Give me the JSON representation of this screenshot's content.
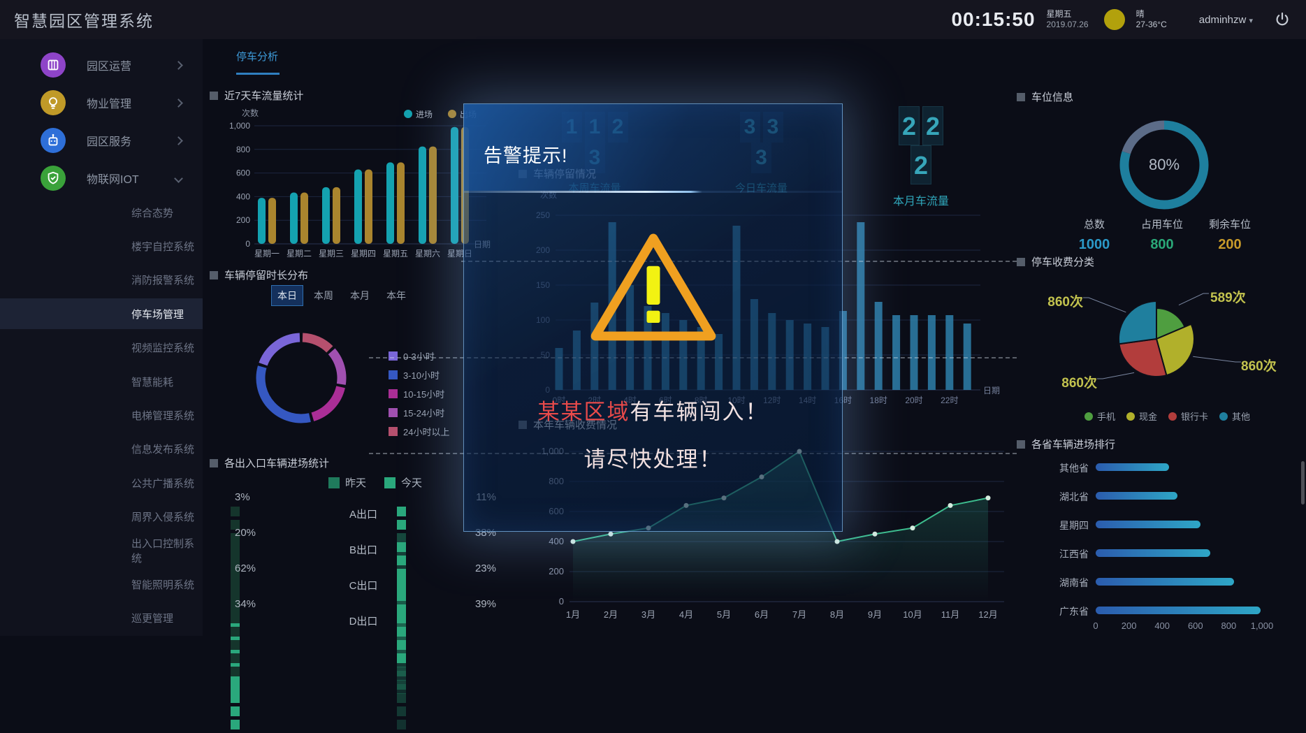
{
  "header": {
    "app_title": "智慧园区管理系统",
    "time": "00:15:50",
    "weekday": "星期五",
    "date": "2019.07.26",
    "weather": "晴",
    "temp_range": "27-36°C",
    "username": "adminhzw"
  },
  "sidebar": {
    "groups": [
      {
        "label": "园区运营",
        "icon": "grid-icon",
        "color": "#8e44c8",
        "expanded": false
      },
      {
        "label": "物业管理",
        "icon": "bulb-icon",
        "color": "#c09a28",
        "expanded": false
      },
      {
        "label": "园区服务",
        "icon": "robot-icon",
        "color": "#2e6fd8",
        "expanded": false
      },
      {
        "label": "物联网IOT",
        "icon": "shield-icon",
        "color": "#3aa23a",
        "expanded": true
      }
    ],
    "items": [
      "综合态势",
      "楼宇自控系统",
      "消防报警系统",
      "停车场管理",
      "视频监控系统",
      "智慧能耗",
      "电梯管理系统",
      "信息发布系统",
      "公共广播系统",
      "周界入侵系统",
      "出入口控制系统",
      "智能照明系统",
      "巡更管理"
    ],
    "active_item": "停车场管理"
  },
  "tab": {
    "label": "停车分析"
  },
  "stats": {
    "week": {
      "digits": [
        "1",
        "1",
        "2",
        "3"
      ],
      "label": "本周车流量"
    },
    "today": {
      "digits": [
        "3",
        "3",
        "3"
      ],
      "label": "今日车流量"
    },
    "month": {
      "digits": [
        "2",
        "2",
        "2"
      ],
      "label": "本月车流量"
    }
  },
  "modal": {
    "title": "告警提示!",
    "line1_highlight": "某某区域",
    "line1_rest": "有车辆闯入！",
    "line2": "请尽快处理！"
  },
  "chart_data": [
    {
      "id": "weekly_flow",
      "type": "bar",
      "title": "近7天车流量统计",
      "ylabel": "次数",
      "xlabel": "日期",
      "ylim": [
        0,
        1000
      ],
      "categories": [
        "星期一",
        "星期二",
        "星期三",
        "星期四",
        "星期五",
        "星期六",
        "星期日"
      ],
      "series": [
        {
          "name": "进场",
          "color": "#14a2b0",
          "values": [
            390,
            435,
            480,
            630,
            690,
            825,
            990
          ]
        },
        {
          "name": "出场",
          "color": "#aa852e",
          "values": [
            390,
            435,
            480,
            630,
            690,
            825,
            990
          ]
        }
      ],
      "legend_position": "top-right",
      "grid": true
    },
    {
      "id": "stay_duration",
      "type": "pie",
      "title": "车辆停留时长分布",
      "tabs": [
        "本日",
        "本周",
        "本月",
        "本年"
      ],
      "active_tab": "本日",
      "segments": [
        {
          "label": "0-3小时",
          "value": 20,
          "color": "#7a66d8"
        },
        {
          "label": "3-10小时",
          "value": 34,
          "color": "#3558c2"
        },
        {
          "label": "10-15小时",
          "value": 18,
          "color": "#aa2e96"
        },
        {
          "label": "15-24小时",
          "value": 15,
          "color": "#a050b0"
        },
        {
          "label": "24小时以上",
          "value": 13,
          "color": "#b5506e"
        }
      ],
      "legend_position": "right"
    },
    {
      "id": "hourly_flow",
      "type": "bar",
      "title": "车辆停留情况",
      "ylabel": "次数",
      "xlabel": "日期",
      "ylim": [
        0,
        250
      ],
      "categories": [
        "0时",
        "1时",
        "2时",
        "3时",
        "4时",
        "5时",
        "6时",
        "7时",
        "8时",
        "9时",
        "10时",
        "11时",
        "12时",
        "13时",
        "14时",
        "15时",
        "16时",
        "17时",
        "18时",
        "19时",
        "20时",
        "21时",
        "22时",
        "23时"
      ],
      "values": [
        60,
        85,
        125,
        240,
        150,
        120,
        110,
        100,
        90,
        80,
        235,
        130,
        110,
        100,
        95,
        90,
        113,
        240,
        126,
        107,
        107,
        107,
        107,
        95
      ],
      "bar_color": "#2e80aa",
      "thresholds": [
        190,
        50
      ],
      "grid": true
    },
    {
      "id": "yearly_fee",
      "type": "line",
      "title": "本年车辆收费情况",
      "ylim": [
        0,
        1000
      ],
      "categories": [
        "1月",
        "2月",
        "3月",
        "4月",
        "5月",
        "6月",
        "7月",
        "8月",
        "9月",
        "10月",
        "11月",
        "12月"
      ],
      "values": [
        400,
        450,
        490,
        640,
        690,
        830,
        1000,
        400,
        450,
        490,
        640,
        690
      ],
      "line_color": "#3dbd8e",
      "dot_color": "#d5ecdf",
      "area": true,
      "threshold": 1000,
      "grid": true
    },
    {
      "id": "parking_occupancy",
      "type": "pie",
      "title": "车位信息",
      "percent_label": "80%",
      "occupied_ratio": 0.8,
      "ring_colors": {
        "occupied": "#1e7f9e",
        "free": "#5c6c88"
      },
      "stats": [
        {
          "label": "总数",
          "value": "1000",
          "color": "#2b9ac8"
        },
        {
          "label": "占用车位",
          "value": "800",
          "color": "#2aa878"
        },
        {
          "label": "剩余车位",
          "value": "200",
          "color": "#c79a2a"
        }
      ]
    },
    {
      "id": "fee_category",
      "type": "pie",
      "title": "停车收费分类",
      "slices": [
        {
          "label": "手机",
          "value": 589,
          "display": "589次",
          "color": "#4f9e40"
        },
        {
          "label": "现金",
          "value": 860,
          "display": "860次",
          "color": "#b1b02b"
        },
        {
          "label": "银行卡",
          "value": 860,
          "display": "860次",
          "color": "#b23d3c"
        },
        {
          "label": "其他",
          "value": 860,
          "display": "860次",
          "color": "#1f7f9e"
        }
      ],
      "legend_position": "bottom"
    },
    {
      "id": "province_rank",
      "type": "bar",
      "title": "各省车辆进场排行",
      "orientation": "horizontal",
      "xlim": [
        0,
        1000
      ],
      "xticks": [
        "0",
        "200",
        "400",
        "600",
        "800",
        "1,000"
      ],
      "categories": [
        "其他省",
        "湖北省",
        "星期四",
        "江西省",
        "湖南省",
        "广东省"
      ],
      "values": [
        440,
        490,
        630,
        690,
        830,
        990
      ]
    },
    {
      "id": "entrance_stats",
      "type": "table",
      "title": "各出入口车辆进场统计",
      "legend": [
        "昨天",
        "今天"
      ],
      "blocks_per_side": 9,
      "rows": [
        {
          "gate": "A出口",
          "yesterday_pct": "3%",
          "yesterday_lit": 1,
          "today_pct": "11%",
          "today_lit": 2
        },
        {
          "gate": "B出口",
          "yesterday_pct": "20%",
          "yesterday_lit": 2,
          "today_pct": "38%",
          "today_lit": 4
        },
        {
          "gate": "C出口",
          "yesterday_pct": "62%",
          "yesterday_lit": 6,
          "today_pct": "23%",
          "today_lit": 3
        },
        {
          "gate": "D出口",
          "yesterday_pct": "34%",
          "yesterday_lit": 4,
          "today_pct": "39%",
          "today_lit": 4
        }
      ],
      "colors": {
        "lit": "#2aa87c",
        "dim": "#15352c"
      }
    }
  ]
}
